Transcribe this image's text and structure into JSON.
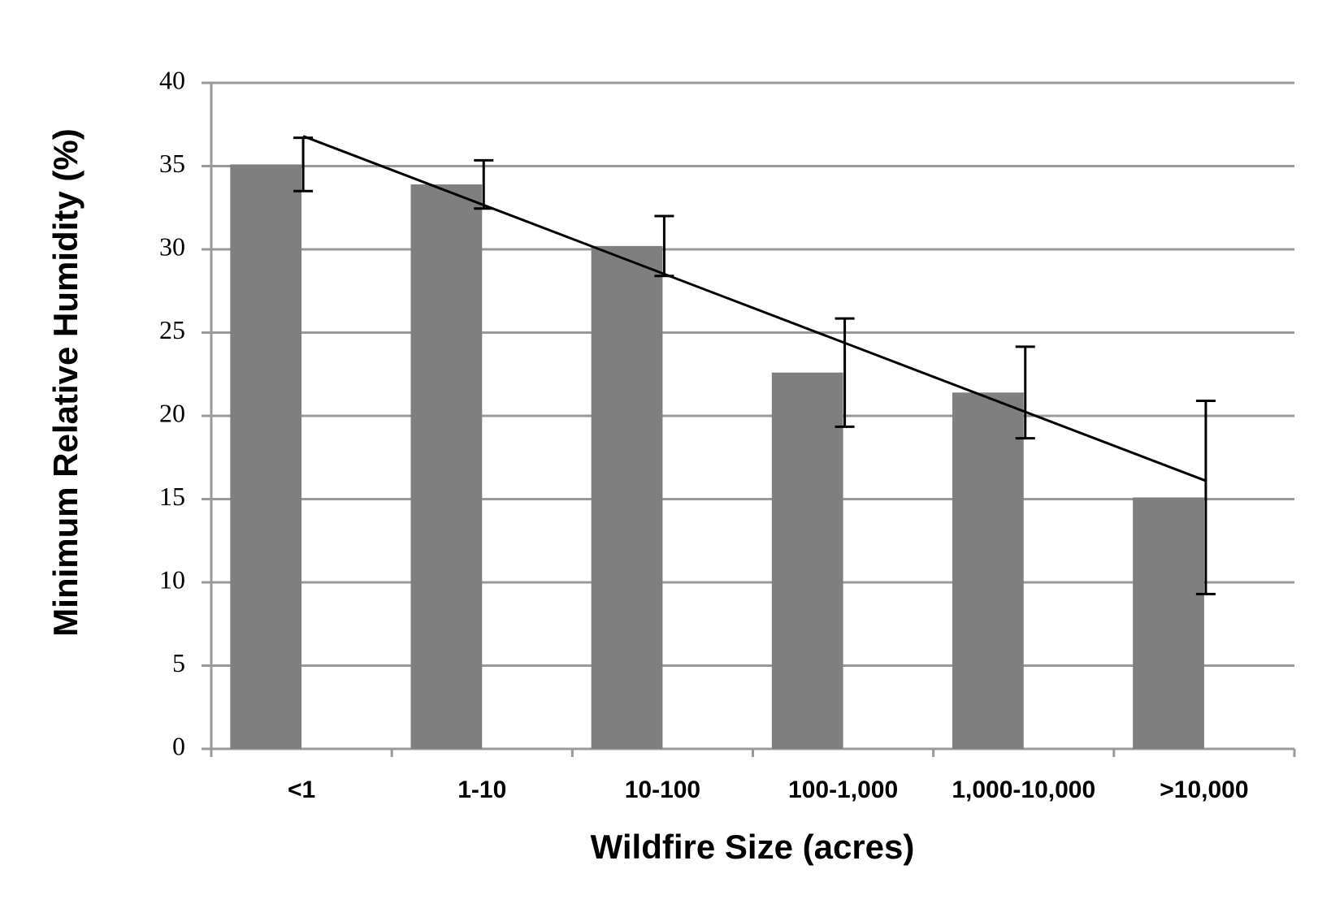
{
  "chart_data": {
    "type": "bar",
    "x_label": "Wildfire Size (acres)",
    "y_label": "Minimum Relative Humidity (%)",
    "categories": [
      "<1",
      "1-10",
      "10-100",
      "100-1,000",
      "1,000-10,000",
      ">10,000"
    ],
    "values": [
      35.1,
      33.9,
      30.2,
      22.6,
      21.4,
      15.1
    ],
    "errors": [
      1.6,
      1.45,
      1.8,
      3.25,
      2.75,
      5.8
    ],
    "color": "#7f7f7f",
    "trendline": [
      36.8,
      16.1
    ],
    "ylim": [
      0,
      40
    ],
    "yticks": [
      0,
      5,
      10,
      15,
      20,
      25,
      30,
      35,
      40
    ],
    "grid": true
  }
}
